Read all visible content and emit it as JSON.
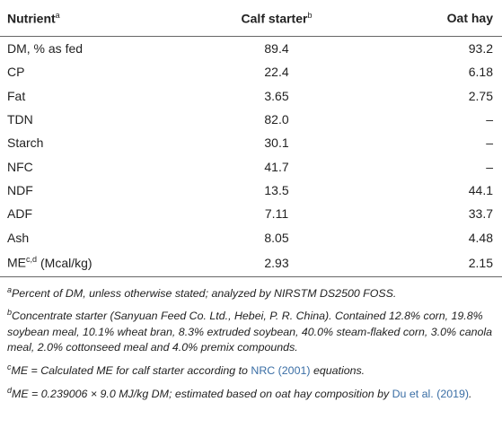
{
  "table": {
    "header": [
      {
        "text": "Nutrient",
        "sup": "a"
      },
      {
        "text": "Calf starter",
        "sup": "b"
      },
      {
        "text": "Oat hay"
      }
    ],
    "rows": [
      [
        "DM, % as fed",
        "89.4",
        "93.2"
      ],
      [
        "CP",
        "22.4",
        "6.18"
      ],
      [
        "Fat",
        "3.65",
        "2.75"
      ],
      [
        "TDN",
        "82.0",
        "–"
      ],
      [
        "Starch",
        "30.1",
        "–"
      ],
      [
        "NFC",
        "41.7",
        "–"
      ],
      [
        "NDF",
        "13.5",
        "44.1"
      ],
      [
        "ADF",
        "7.11",
        "33.7"
      ],
      [
        "Ash",
        "8.05",
        "4.48"
      ],
      [
        {
          "text": "ME",
          "sup": "c,d",
          "after": "(Mcal/kg)"
        },
        "2.93",
        "2.15"
      ]
    ]
  },
  "footnotes": [
    {
      "mark": "a",
      "before": "Percent of DM, unless otherwise stated; analyzed by NIRSTM DS2500 FOSS."
    },
    {
      "mark": "b",
      "before": "Concentrate starter (Sanyuan Feed Co. Ltd., Hebei, P. R. China). Contained 12.8% corn, 19.8% soybean meal, 10.1% wheat bran, 8.3% extruded soybean, 40.0% steam-flaked corn, 3.0% canola meal, 2.0% cottonseed meal and 4.0% premix compounds."
    },
    {
      "mark": "c",
      "before": "ME = Calculated ME for calf starter according to",
      "link": "NRC (2001)",
      "after": "equations."
    },
    {
      "mark": "d",
      "before": "ME = 0.239006 × 9.0 MJ/kg DM; estimated based on oat hay composition by",
      "link": "Du et al. (2019)",
      "after": "."
    }
  ]
}
